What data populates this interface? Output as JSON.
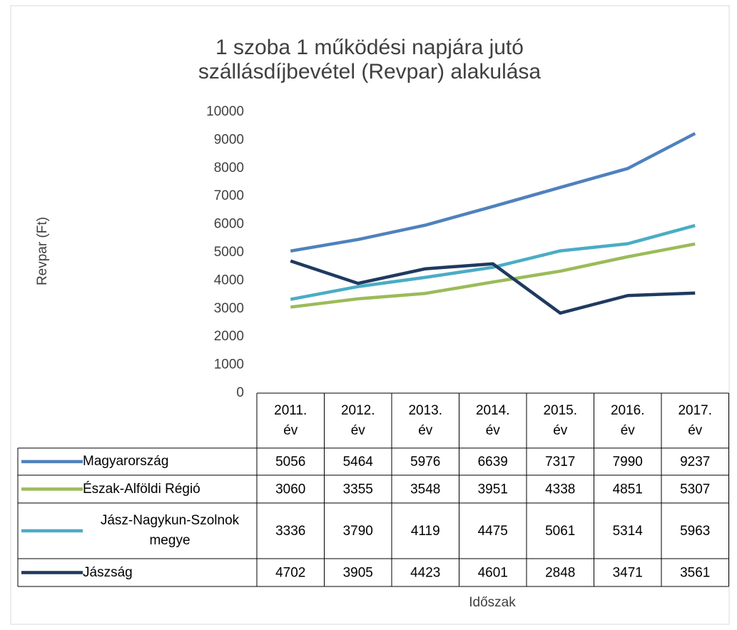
{
  "chart_data": {
    "type": "line",
    "title": "1 szoba 1 működési napjára jutó szállásdíjbevétel (Revpar) alakulása",
    "y_label": "Revpar (Ft)",
    "x_label": "Időszak",
    "categories": [
      "2011. év",
      "2012. év",
      "2013. év",
      "2014. év",
      "2015. év",
      "2016. év",
      "2017. év"
    ],
    "series": [
      {
        "name": "Magyarország",
        "color": "#4f81bd",
        "values": [
          5056,
          5464,
          5976,
          6639,
          7317,
          7990,
          9237
        ]
      },
      {
        "name": "Észak-Alföldi Régió",
        "color": "#9bbb59",
        "values": [
          3060,
          3355,
          3548,
          3951,
          4338,
          4851,
          5307
        ]
      },
      {
        "name": "Jász-Nagykun-Szolnok megye",
        "color": "#4bacc6",
        "values": [
          3336,
          3790,
          4119,
          4475,
          5061,
          5314,
          5963
        ]
      },
      {
        "name": "Jászság",
        "color": "#1f3a5f",
        "values": [
          4702,
          3905,
          4423,
          4601,
          2848,
          3471,
          3561
        ]
      }
    ],
    "ylim": [
      0,
      10000
    ],
    "yticks": [
      0,
      1000,
      2000,
      3000,
      4000,
      5000,
      6000,
      7000,
      8000,
      9000,
      10000
    ],
    "grid": false,
    "data_table": true
  }
}
